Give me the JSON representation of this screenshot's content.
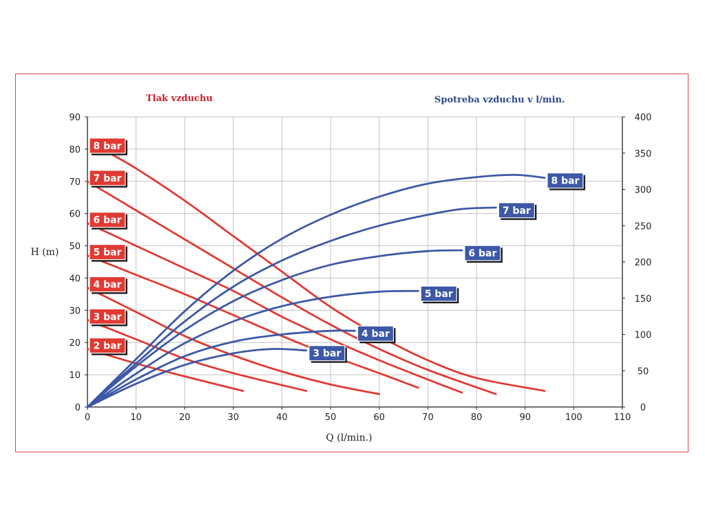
{
  "header": {
    "left_title": "Tlak vzduchu",
    "right_title": "Spotreba vzduchu v l/min."
  },
  "colors": {
    "pressure": "#e03a33",
    "consumption": "#3c58a6",
    "frame": "#d9434e",
    "grid": "#c2c2c2",
    "axis": "#222222"
  },
  "chart_data": {
    "type": "line",
    "xlabel": "Q (l/min.)",
    "ylabel": "H (m)",
    "y2label": "",
    "xlim": [
      0,
      110
    ],
    "ylim": [
      0,
      90
    ],
    "y2lim": [
      0,
      400
    ],
    "xticks": [
      0,
      10,
      20,
      30,
      40,
      50,
      60,
      70,
      80,
      90,
      100,
      110
    ],
    "yticks": [
      0,
      10,
      20,
      30,
      40,
      50,
      60,
      70,
      80,
      90
    ],
    "y2ticks": [
      0,
      50,
      100,
      150,
      200,
      250,
      300,
      350,
      400
    ],
    "grid": true,
    "head_series": [
      {
        "label": "2 bar",
        "axis": "left",
        "points": [
          [
            0,
            18
          ],
          [
            10,
            13.5
          ],
          [
            20,
            9.5
          ],
          [
            32,
            5
          ]
        ]
      },
      {
        "label": "3 bar",
        "axis": "left",
        "points": [
          [
            0,
            27
          ],
          [
            10,
            21
          ],
          [
            20,
            15
          ],
          [
            30,
            10.5
          ],
          [
            45,
            5
          ]
        ]
      },
      {
        "label": "4 bar",
        "axis": "left",
        "points": [
          [
            0,
            37
          ],
          [
            10,
            29.5
          ],
          [
            20,
            22
          ],
          [
            30,
            16
          ],
          [
            40,
            11
          ],
          [
            50,
            7
          ],
          [
            60,
            4
          ]
        ]
      },
      {
        "label": "5 bar",
        "axis": "left",
        "points": [
          [
            0,
            47
          ],
          [
            10,
            41
          ],
          [
            20,
            35
          ],
          [
            30,
            28.5
          ],
          [
            40,
            22
          ],
          [
            50,
            16
          ],
          [
            60,
            10.5
          ],
          [
            68,
            6
          ]
        ]
      },
      {
        "label": "6 bar",
        "axis": "left",
        "points": [
          [
            0,
            57
          ],
          [
            10,
            50
          ],
          [
            20,
            43
          ],
          [
            30,
            36
          ],
          [
            40,
            28
          ],
          [
            50,
            21
          ],
          [
            60,
            14.5
          ],
          [
            70,
            8.5
          ],
          [
            77,
            4.5
          ]
        ]
      },
      {
        "label": "7 bar",
        "axis": "left",
        "points": [
          [
            0,
            70
          ],
          [
            10,
            61
          ],
          [
            20,
            52
          ],
          [
            30,
            43
          ],
          [
            40,
            34
          ],
          [
            50,
            25.5
          ],
          [
            60,
            18
          ],
          [
            70,
            11.5
          ],
          [
            84,
            4
          ]
        ]
      },
      {
        "label": "8 bar",
        "axis": "left",
        "points": [
          [
            3,
            80
          ],
          [
            10,
            74
          ],
          [
            20,
            64
          ],
          [
            30,
            53
          ],
          [
            40,
            42
          ],
          [
            50,
            31
          ],
          [
            60,
            22
          ],
          [
            70,
            14.5
          ],
          [
            80,
            9
          ],
          [
            94,
            5
          ]
        ]
      }
    ],
    "air_series": [
      {
        "label": "3 bar",
        "axis": "right",
        "points": [
          [
            0,
            0
          ],
          [
            10,
            32
          ],
          [
            20,
            58
          ],
          [
            30,
            74
          ],
          [
            38,
            80
          ],
          [
            45,
            78
          ]
        ]
      },
      {
        "label": "4 bar",
        "axis": "right",
        "points": [
          [
            0,
            0
          ],
          [
            10,
            38
          ],
          [
            20,
            70
          ],
          [
            30,
            90
          ],
          [
            40,
            100
          ],
          [
            50,
            105
          ],
          [
            55,
            105
          ]
        ]
      },
      {
        "label": "5 bar",
        "axis": "right",
        "points": [
          [
            0,
            0
          ],
          [
            10,
            46
          ],
          [
            20,
            88
          ],
          [
            30,
            118
          ],
          [
            40,
            139
          ],
          [
            50,
            152
          ],
          [
            60,
            159
          ],
          [
            68,
            160
          ]
        ]
      },
      {
        "label": "6 bar",
        "axis": "right",
        "points": [
          [
            0,
            0
          ],
          [
            10,
            56
          ],
          [
            20,
            106
          ],
          [
            30,
            146
          ],
          [
            40,
            175
          ],
          [
            50,
            196
          ],
          [
            60,
            208
          ],
          [
            70,
            215
          ],
          [
            77,
            216
          ]
        ]
      },
      {
        "label": "7 bar",
        "axis": "right",
        "points": [
          [
            0,
            0
          ],
          [
            10,
            60
          ],
          [
            20,
            118
          ],
          [
            30,
            166
          ],
          [
            40,
            202
          ],
          [
            50,
            229
          ],
          [
            60,
            250
          ],
          [
            70,
            265
          ],
          [
            77,
            273
          ],
          [
            84,
            275
          ]
        ]
      },
      {
        "label": "8 bar",
        "axis": "right",
        "points": [
          [
            0,
            0
          ],
          [
            10,
            66
          ],
          [
            20,
            132
          ],
          [
            30,
            188
          ],
          [
            40,
            232
          ],
          [
            50,
            265
          ],
          [
            60,
            290
          ],
          [
            70,
            308
          ],
          [
            80,
            317
          ],
          [
            88,
            320
          ],
          [
            94,
            316
          ]
        ]
      }
    ]
  }
}
